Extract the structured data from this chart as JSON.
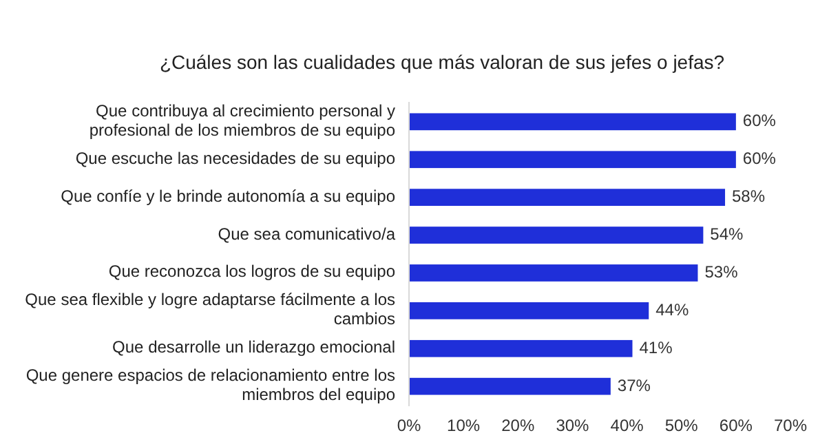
{
  "chart_data": {
    "type": "bar",
    "orientation": "horizontal",
    "title": "¿Cuáles son las cualidades que más valoran de sus jefes o jefas?",
    "categories": [
      "Que contribuya al crecimiento personal y profesional de los miembros de su equipo",
      "Que escuche las necesidades de su equipo",
      "Que confíe y le brinde autonomía a su equipo",
      "Que sea comunicativo/a",
      "Que reconozca los logros de su equipo",
      "Que sea flexible y logre adaptarse fácilmente a los cambios",
      "Que desarrolle un liderazgo emocional",
      "Que genere espacios de relacionamiento entre los miembros del equipo"
    ],
    "values": [
      60,
      60,
      58,
      54,
      53,
      44,
      41,
      37
    ],
    "value_labels": [
      "60%",
      "60%",
      "58%",
      "54%",
      "53%",
      "44%",
      "41%",
      "37%"
    ],
    "color": "#1f2fd9",
    "xlim": [
      0,
      70
    ],
    "xticks": [
      {
        "value": 0,
        "label": "0%"
      },
      {
        "value": 10,
        "label": "10%"
      },
      {
        "value": 20,
        "label": "20%"
      },
      {
        "value": 30,
        "label": "30%"
      },
      {
        "value": 40,
        "label": "40%"
      },
      {
        "value": 50,
        "label": "50%"
      },
      {
        "value": 60,
        "label": "60%"
      },
      {
        "value": 70,
        "label": "70%"
      }
    ],
    "grid": false
  }
}
